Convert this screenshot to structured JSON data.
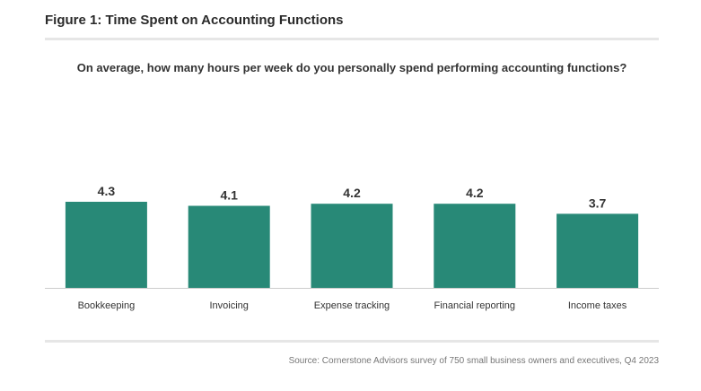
{
  "figure_title": "Figure 1: Time Spent on Accounting Functions",
  "question": "On average, how many hours per week do you personally spend performing accounting functions?",
  "source": "Source: Cornerstone Advisors survey of 750 small business owners and executives, Q4 2023",
  "colors": {
    "bar": "#288977",
    "axis": "#cccccc",
    "label": "#333333"
  },
  "chart_data": {
    "type": "bar",
    "title": "",
    "xlabel": "",
    "ylabel": "",
    "categories": [
      "Bookkeeping",
      "Invoicing",
      "Expense tracking",
      "Financial reporting",
      "Income taxes"
    ],
    "values": [
      4.3,
      4.1,
      4.2,
      4.2,
      3.7
    ],
    "value_labels": [
      "4.3",
      "4.1",
      "4.2",
      "4.2",
      "3.7"
    ],
    "ylim": [
      0,
      4.3
    ],
    "grid": false,
    "legend": "none"
  }
}
